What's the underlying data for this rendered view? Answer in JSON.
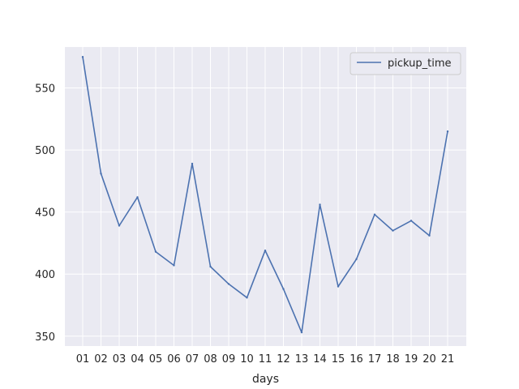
{
  "chart_data": {
    "type": "line",
    "title": "",
    "xlabel": "days",
    "ylabel": "",
    "categories": [
      "01",
      "02",
      "03",
      "04",
      "05",
      "06",
      "07",
      "08",
      "09",
      "10",
      "11",
      "12",
      "13",
      "14",
      "15",
      "16",
      "17",
      "18",
      "19",
      "20",
      "21"
    ],
    "series": [
      {
        "name": "pickup_time",
        "values": [
          575,
          481,
          439,
          462,
          418,
          407,
          489,
          406,
          392,
          381,
          419,
          388,
          353,
          456,
          390,
          412,
          448,
          435,
          443,
          431,
          515
        ]
      }
    ],
    "yticks": [
      350,
      400,
      450,
      500,
      550
    ],
    "ylim": [
      342,
      583
    ],
    "grid": true,
    "legend_position": "top-right",
    "colors": {
      "background": "#eaeaf2",
      "grid": "#ffffff",
      "line": "#4c72b0",
      "text": "#262626"
    }
  }
}
